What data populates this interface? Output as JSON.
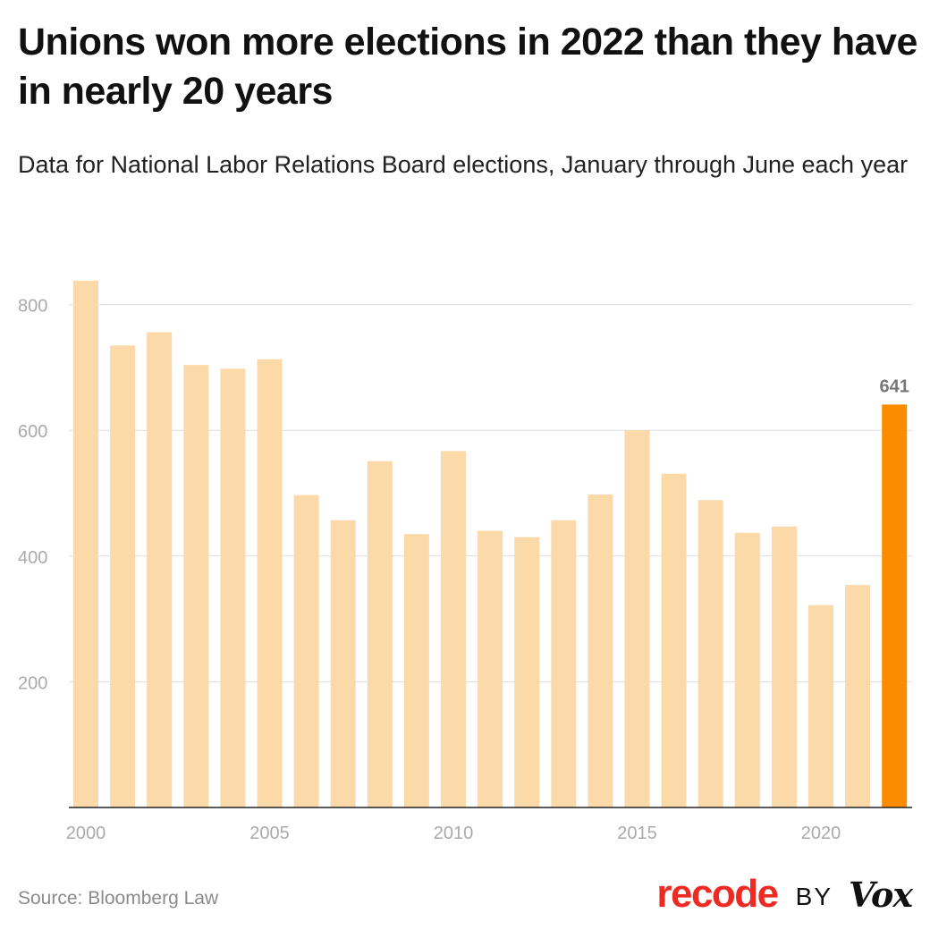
{
  "header": {
    "title": "Unions won more elections in 2022 than they have in nearly 20 years",
    "subtitle": "Data for National Labor Relations Board elections, January through June each year"
  },
  "footer": {
    "source": "Source: Bloomberg Law",
    "brand_recode": "recode",
    "brand_by": "BY",
    "brand_vox": "Vox"
  },
  "colors": {
    "bar": "#fcd9a8",
    "highlight": "#fb8c00",
    "grid": "#dddddd",
    "tick_text": "#aaaaaa",
    "label_text": "#777777"
  },
  "chart_data": {
    "type": "bar",
    "title": "Unions won more elections in 2022 than they have in nearly 20 years",
    "subtitle": "Data for National Labor Relations Board elections, January through June each year",
    "categories": [
      "2000",
      "2001",
      "2002",
      "2003",
      "2004",
      "2005",
      "2006",
      "2007",
      "2008",
      "2009",
      "2010",
      "2011",
      "2012",
      "2013",
      "2014",
      "2015",
      "2016",
      "2017",
      "2018",
      "2019",
      "2020",
      "2021",
      "2022"
    ],
    "values": [
      838,
      735,
      756,
      704,
      698,
      713,
      497,
      457,
      551,
      435,
      567,
      440,
      430,
      457,
      498,
      600,
      531,
      489,
      437,
      447,
      322,
      354,
      641
    ],
    "highlight_index": 22,
    "data_labels": [
      {
        "index": 22,
        "text": "641"
      }
    ],
    "x_tick_labels": [
      "2000",
      "2005",
      "2010",
      "2015",
      "2020"
    ],
    "y_ticks": [
      200,
      400,
      600,
      800
    ],
    "ylim": [
      0,
      880
    ],
    "grid": true,
    "source": "Source: Bloomberg Law"
  }
}
